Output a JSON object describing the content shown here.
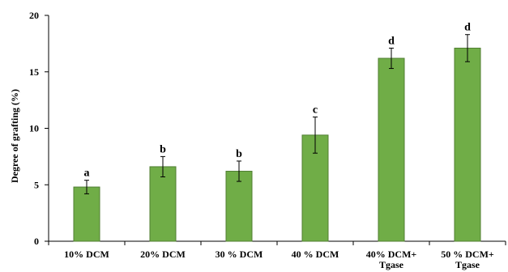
{
  "chart_data": {
    "type": "bar",
    "title": "",
    "xlabel": "",
    "ylabel": "Degree of grafting (%)",
    "ylim": [
      0,
      20
    ],
    "yticks": [
      0,
      5,
      10,
      15,
      20
    ],
    "grid": false,
    "categories": [
      [
        "10% DCM"
      ],
      [
        "20% DCM"
      ],
      [
        "30 % DCM"
      ],
      [
        "40 % DCM"
      ],
      [
        "40% DCM+",
        "Tgase"
      ],
      [
        "50 % DCM+",
        "Tgase"
      ]
    ],
    "values": [
      4.8,
      6.6,
      6.2,
      9.4,
      16.2,
      17.1
    ],
    "errors": [
      0.6,
      0.9,
      0.9,
      1.6,
      0.9,
      1.2
    ],
    "significance_letters": [
      "a",
      "b",
      "b",
      "c",
      "d",
      "d"
    ],
    "bar_color": "#70AD47",
    "bar_edge_color": "#507E32"
  }
}
